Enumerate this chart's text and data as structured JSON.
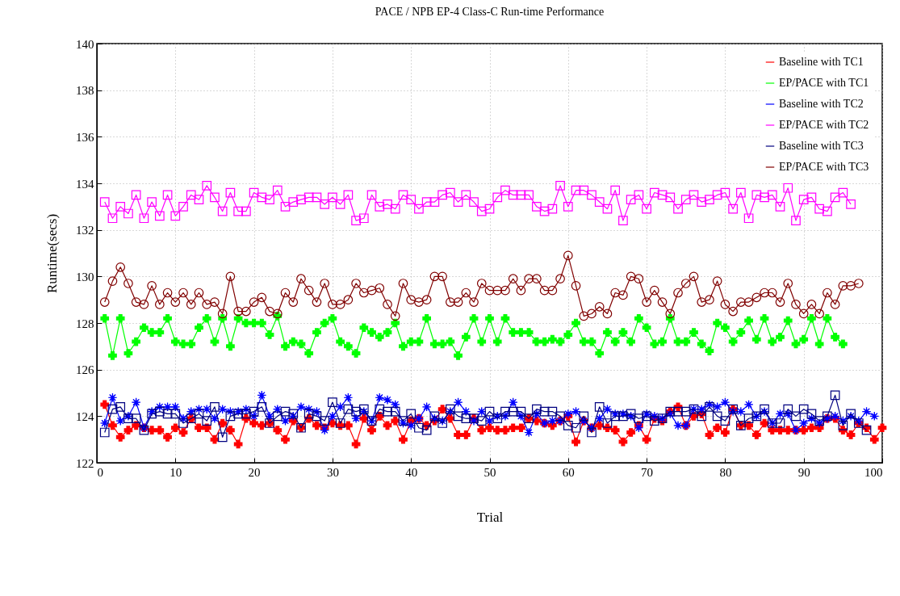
{
  "chart_data": {
    "type": "line",
    "title": "PACE / NPB EP-4 Class-C Run-time Performance",
    "xlabel": "Trial",
    "ylabel": "Runtime(secs)",
    "x": [
      1,
      2,
      3,
      4,
      5,
      6,
      7,
      8,
      9,
      10,
      11,
      12,
      13,
      14,
      15,
      16,
      17,
      18,
      19,
      20,
      21,
      22,
      23,
      24,
      25,
      26,
      27,
      28,
      29,
      30,
      31,
      32,
      33,
      34,
      35,
      36,
      37,
      38,
      39,
      40,
      41,
      42,
      43,
      44,
      45,
      46,
      47,
      48,
      49,
      50,
      51,
      52,
      53,
      54,
      55,
      56,
      57,
      58,
      59,
      60,
      61,
      62,
      63,
      64,
      65,
      66,
      67,
      68,
      69,
      70,
      71,
      72,
      73,
      74,
      75,
      76,
      77,
      78,
      79,
      80,
      81,
      82,
      83,
      84,
      85,
      86,
      87,
      88,
      89,
      90,
      91,
      92,
      93,
      94,
      95,
      96,
      97,
      98,
      99,
      100
    ],
    "xlim": [
      0,
      100
    ],
    "xticks": [
      0,
      10,
      20,
      30,
      40,
      50,
      60,
      70,
      80,
      90,
      100
    ],
    "ylim": [
      122,
      140
    ],
    "yticks": [
      122,
      124,
      126,
      128,
      130,
      132,
      134,
      136,
      138,
      140
    ],
    "grid": true,
    "legend": "top right",
    "series": [
      {
        "name": "Baseline with TC1",
        "color": "#ff0000",
        "marker": "cross",
        "values": [
          124.5,
          123.6,
          123.1,
          123.4,
          123.6,
          123.5,
          123.4,
          123.4,
          123.1,
          123.5,
          123.3,
          123.9,
          123.5,
          123.5,
          123.0,
          123.7,
          123.4,
          122.8,
          123.9,
          123.7,
          123.6,
          123.7,
          123.4,
          123.0,
          123.8,
          123.5,
          123.9,
          123.6,
          123.5,
          123.7,
          123.6,
          123.6,
          122.8,
          123.9,
          123.4,
          124.0,
          123.6,
          123.8,
          123.0,
          123.8,
          123.9,
          123.6,
          123.8,
          124.3,
          123.9,
          123.2,
          123.2,
          123.9,
          123.4,
          123.5,
          123.4,
          123.4,
          123.5,
          123.5,
          123.9,
          123.8,
          123.7,
          123.6,
          123.8,
          124.0,
          122.9,
          123.8,
          123.5,
          123.6,
          123.5,
          123.4,
          122.9,
          123.3,
          123.6,
          123.0,
          123.9,
          123.8,
          124.2,
          124.4,
          123.6,
          124.0,
          124.1,
          123.2,
          123.5,
          123.3,
          124.3,
          123.6,
          123.6,
          123.2,
          123.7,
          123.4,
          123.4,
          123.4,
          123.4,
          123.4,
          123.5,
          123.5,
          123.9,
          123.9,
          123.4,
          123.2,
          123.7,
          123.5,
          123.0,
          123.5
        ]
      },
      {
        "name": "EP/PACE with TC1",
        "color": "#00ff00",
        "marker": "cross",
        "values": [
          128.2,
          126.6,
          128.2,
          126.7,
          127.2,
          127.8,
          127.6,
          127.6,
          128.2,
          127.2,
          127.1,
          127.1,
          127.8,
          128.2,
          127.2,
          128.2,
          127.0,
          128.2,
          128.0,
          128.0,
          128.0,
          127.5,
          128.3,
          127.0,
          127.2,
          127.1,
          126.7,
          127.6,
          128.0,
          128.2,
          127.2,
          127.0,
          126.7,
          127.8,
          127.6,
          127.4,
          127.6,
          128.0,
          127.0,
          127.2,
          127.2,
          128.2,
          127.1,
          127.1,
          127.2,
          126.6,
          127.4,
          128.2,
          127.2,
          128.2,
          127.2,
          128.2,
          127.6,
          127.6,
          127.6,
          127.2,
          127.2,
          127.3,
          127.2,
          127.5,
          128.0,
          127.2,
          127.2,
          126.7,
          127.6,
          127.2,
          127.6,
          127.2,
          128.2,
          127.8,
          127.1,
          127.2,
          128.2,
          127.2,
          127.2,
          127.6,
          127.1,
          126.8,
          128.0,
          127.8,
          127.2,
          127.6,
          128.1,
          127.3,
          128.2,
          127.2,
          127.4,
          128.1,
          127.1,
          127.3,
          128.2,
          127.1,
          128.2,
          127.4,
          127.1,
          null,
          null,
          null,
          null,
          null
        ]
      },
      {
        "name": "Baseline with TC2",
        "color": "#0000ff",
        "marker": "star",
        "values": [
          123.7,
          124.8,
          123.8,
          124.0,
          124.6,
          123.5,
          124.2,
          124.4,
          124.4,
          124.4,
          123.9,
          124.2,
          124.3,
          124.3,
          123.9,
          124.3,
          124.2,
          124.2,
          124.3,
          124.0,
          124.9,
          124.0,
          124.3,
          123.8,
          124.0,
          124.4,
          124.3,
          124.2,
          123.4,
          124.0,
          124.4,
          124.8,
          123.9,
          124.2,
          123.8,
          124.8,
          124.7,
          124.5,
          123.7,
          123.6,
          123.9,
          124.4,
          123.9,
          123.8,
          124.2,
          124.6,
          124.2,
          123.8,
          124.2,
          123.8,
          124.0,
          124.0,
          124.6,
          124.0,
          123.3,
          124.1,
          123.7,
          123.8,
          123.8,
          124.1,
          124.2,
          123.8,
          123.5,
          123.9,
          124.3,
          124.1,
          124.1,
          124.0,
          123.5,
          124.1,
          124.0,
          123.9,
          124.1,
          123.6,
          123.6,
          124.3,
          124.3,
          124.5,
          124.4,
          124.6,
          124.2,
          124.2,
          124.5,
          124.0,
          124.2,
          123.7,
          124.1,
          124.1,
          123.4,
          123.7,
          123.9,
          123.7,
          123.9,
          124.0,
          123.8,
          124.0,
          123.8,
          124.2,
          124.0,
          null
        ]
      },
      {
        "name": "EP/PACE with TC2",
        "color": "#ff00ff",
        "marker": "square",
        "values": [
          133.2,
          132.5,
          133.0,
          132.7,
          133.5,
          132.5,
          133.2,
          132.6,
          133.5,
          132.6,
          133.0,
          133.5,
          133.3,
          133.9,
          133.4,
          132.8,
          133.6,
          132.8,
          132.8,
          133.6,
          133.4,
          133.3,
          133.7,
          133.0,
          133.2,
          133.3,
          133.4,
          133.4,
          133.1,
          133.4,
          133.1,
          133.5,
          132.4,
          132.5,
          133.5,
          133.0,
          133.1,
          132.9,
          133.5,
          133.3,
          132.9,
          133.2,
          133.2,
          133.5,
          133.6,
          133.2,
          133.5,
          133.2,
          132.8,
          132.9,
          133.4,
          133.7,
          133.5,
          133.5,
          133.5,
          133.0,
          132.8,
          132.9,
          133.9,
          133.0,
          133.7,
          133.7,
          133.5,
          133.2,
          132.9,
          133.7,
          132.4,
          133.3,
          133.5,
          132.9,
          133.6,
          133.5,
          133.4,
          132.9,
          133.3,
          133.5,
          133.2,
          133.3,
          133.5,
          133.6,
          132.9,
          133.6,
          132.5,
          133.5,
          133.4,
          133.5,
          133.0,
          133.8,
          132.4,
          133.3,
          133.4,
          132.9,
          132.8,
          133.4,
          133.6,
          133.1,
          null,
          null,
          null,
          null
        ]
      },
      {
        "name": "Baseline with TC3",
        "color": "#000080",
        "marker": "square",
        "values": [
          123.3,
          124.3,
          124.4,
          123.9,
          123.9,
          123.4,
          124.1,
          124.2,
          124.1,
          124.1,
          123.7,
          123.9,
          124.1,
          123.8,
          124.4,
          123.1,
          124.0,
          124.1,
          124.1,
          124.2,
          124.4,
          123.7,
          124.0,
          124.2,
          124.1,
          123.5,
          124.1,
          124.0,
          123.8,
          124.6,
          123.7,
          124.3,
          124.2,
          124.3,
          123.8,
          124.3,
          124.2,
          124.2,
          123.8,
          124.1,
          123.5,
          123.4,
          124.0,
          123.7,
          124.3,
          124.0,
          123.9,
          123.9,
          123.8,
          124.2,
          123.9,
          124.2,
          124.2,
          124.2,
          123.9,
          124.3,
          124.2,
          124.2,
          124.0,
          123.6,
          123.5,
          124.0,
          123.3,
          124.4,
          123.7,
          124.0,
          124.0,
          124.1,
          123.9,
          124.0,
          123.8,
          123.9,
          124.2,
          124.2,
          124.2,
          124.3,
          124.0,
          124.4,
          124.0,
          123.8,
          124.3,
          123.6,
          123.9,
          124.0,
          124.3,
          123.7,
          123.7,
          124.3,
          124.0,
          124.3,
          124.1,
          123.8,
          124.0,
          124.9,
          123.6,
          124.1,
          123.7,
          123.4,
          null,
          null
        ]
      },
      {
        "name": "EP/PACE with TC3",
        "color": "#800000",
        "marker": "circle",
        "values": [
          128.9,
          129.8,
          130.4,
          129.7,
          128.9,
          128.8,
          129.6,
          128.8,
          129.3,
          128.9,
          129.3,
          128.8,
          129.3,
          128.8,
          128.9,
          128.4,
          130.0,
          128.5,
          128.5,
          128.9,
          129.1,
          128.5,
          128.4,
          129.3,
          128.9,
          129.9,
          129.4,
          128.9,
          129.7,
          128.8,
          128.8,
          129.0,
          129.7,
          129.3,
          129.4,
          129.5,
          128.8,
          128.3,
          129.7,
          129.0,
          128.9,
          129.0,
          130.0,
          130.0,
          128.9,
          128.9,
          129.3,
          128.9,
          129.7,
          129.4,
          129.4,
          129.4,
          129.9,
          129.4,
          129.9,
          129.9,
          129.4,
          129.4,
          129.9,
          130.9,
          129.6,
          128.3,
          128.4,
          128.7,
          128.4,
          129.3,
          129.2,
          130.0,
          129.9,
          128.9,
          129.4,
          128.9,
          128.4,
          129.3,
          129.7,
          130.0,
          128.9,
          129.0,
          129.8,
          128.8,
          128.5,
          128.9,
          128.9,
          129.1,
          129.3,
          129.3,
          128.9,
          129.7,
          128.8,
          128.4,
          128.8,
          128.4,
          129.3,
          128.8,
          129.6,
          129.6,
          129.7,
          null,
          null,
          null
        ]
      }
    ]
  }
}
